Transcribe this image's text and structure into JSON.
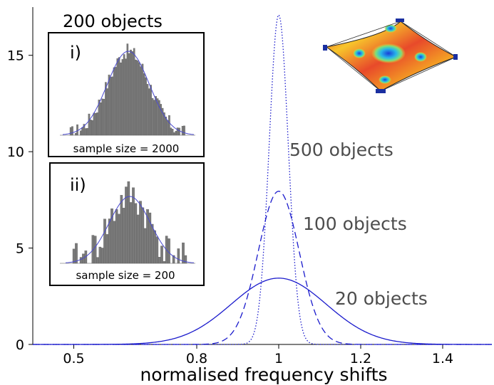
{
  "chart_data": {
    "type": "line",
    "title": "",
    "xlabel": "normalised frequency shifts",
    "ylabel": "",
    "xlim": [
      0.4,
      1.52
    ],
    "ylim": [
      0,
      17.5
    ],
    "x_ticks": [
      0.5,
      0.8,
      1,
      1.2,
      1.4
    ],
    "x_tick_labels": [
      "0.5",
      "0.8",
      "1",
      "1.2",
      "1.4"
    ],
    "y_ticks": [
      0,
      5,
      10,
      15
    ],
    "y_tick_labels": [
      "0",
      "5",
      "10",
      "15"
    ],
    "grid": false,
    "series": [
      {
        "mean": 1.0,
        "sd": 0.0233,
        "peak": 17.1,
        "linestyle": "dotted",
        "color": "#1a1acc"
      },
      {
        "mean": 1.0,
        "sd": 0.05,
        "peak": 7.95,
        "linestyle": "dashed",
        "color": "#1a1acc"
      },
      {
        "mean": 1.0,
        "sd": 0.116,
        "peak": 3.44,
        "linestyle": "solid",
        "color": "#1a1acc"
      }
    ],
    "annotations": [
      {
        "text": "500 objects"
      },
      {
        "text": "100 objects"
      },
      {
        "text": "20 objects"
      },
      {
        "text": "200 objects"
      }
    ],
    "insets": [
      {
        "tag": "i)",
        "caption": "sample size = 2000"
      },
      {
        "tag": "ii)",
        "caption": "sample size = 200"
      }
    ]
  }
}
